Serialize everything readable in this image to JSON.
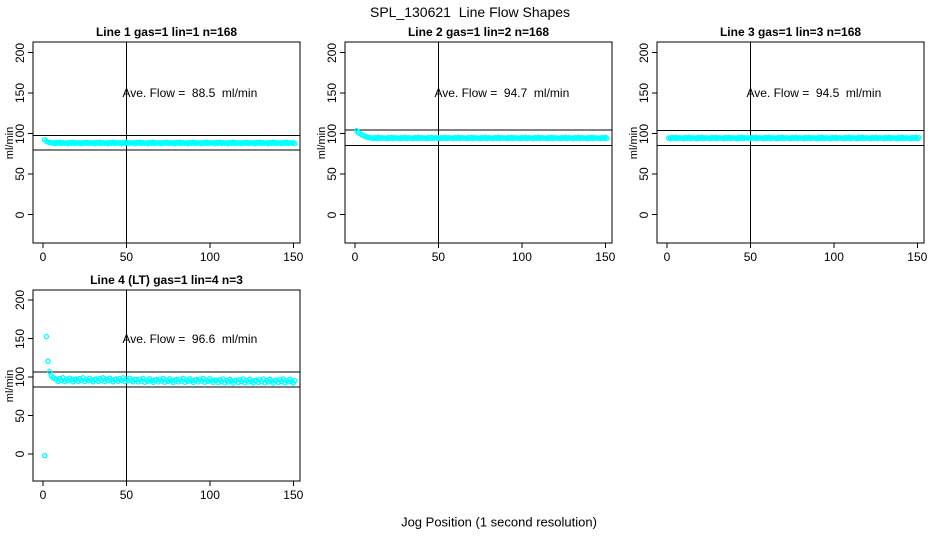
{
  "figure": {
    "title": "SPL_130621  Line Flow Shapes",
    "xlabel": "Jog Position (1 second resolution)"
  },
  "colors": {
    "points": "#00ffff",
    "axis": "#000000",
    "background": "#ffffff",
    "text": "#000000"
  },
  "chart_data": [
    {
      "type": "scatter",
      "title": "Line 1 gas=1 lin=1 n=168",
      "gas": 1,
      "lin": 1,
      "n": 168,
      "ave_flow": 88.5,
      "annotation": "Ave. Flow =  88.5  ml/min",
      "ylabel": "ml/min",
      "xticks": [
        0,
        50,
        100,
        150
      ],
      "yticks": [
        0,
        50,
        100,
        150,
        200
      ],
      "xlim": [
        -6,
        154
      ],
      "ylim": [
        -35,
        213
      ],
      "vline_x": 50,
      "hlines": [
        97.4,
        79.7
      ],
      "annotation_pos": [
        88,
        150
      ],
      "x_start": 1,
      "x_step": 1,
      "y": [
        92.5,
        90.6,
        89.6,
        89.1,
        88.8,
        88.5,
        87.7,
        89.0,
        88.1,
        89.3,
        87.9,
        88.8,
        88.3,
        88.5,
        87.7,
        89.0,
        88.1,
        89.3,
        87.9,
        88.8,
        88.3,
        88.5,
        87.7,
        89.0,
        88.1,
        89.3,
        87.9,
        88.8,
        88.3,
        88.5,
        87.7,
        89.0,
        88.1,
        89.3,
        87.9,
        88.8,
        88.3,
        88.5,
        87.7,
        89.0,
        88.1,
        89.3,
        87.9,
        88.8,
        88.3,
        88.5,
        87.7,
        89.0,
        88.1,
        89.3,
        87.9,
        88.8,
        88.3,
        88.5,
        87.7,
        89.0,
        88.1,
        89.3,
        87.9,
        88.8,
        88.3,
        88.5,
        87.7,
        89.0,
        88.1,
        89.3,
        87.9,
        88.8,
        88.3,
        88.5,
        87.7,
        89.0,
        88.1,
        89.3,
        87.9,
        88.8,
        88.3,
        88.5,
        87.7,
        89.0,
        88.1,
        89.3,
        87.9,
        88.8,
        88.3,
        88.5,
        87.7,
        89.0,
        88.1,
        89.3,
        87.9,
        88.8,
        88.3,
        88.5,
        87.7,
        89.0,
        88.1,
        89.3,
        87.9,
        88.8,
        88.3,
        88.5,
        87.7,
        89.0,
        88.1,
        89.3,
        87.9,
        88.8,
        88.3,
        88.5,
        87.7,
        89.0,
        88.1,
        89.3,
        87.9,
        88.8,
        88.3,
        88.5,
        87.7,
        89.0,
        88.1,
        89.3,
        87.9,
        88.8,
        88.3,
        88.5,
        87.7,
        89.0,
        88.1,
        89.3,
        87.9,
        88.8,
        88.3,
        88.5,
        87.7,
        89.0,
        88.1,
        89.3,
        87.9,
        88.8,
        88.3,
        88.5,
        87.7,
        89.0,
        88.1,
        89.3,
        87.9,
        88.8,
        88.3,
        88.5,
        87.7
      ]
    },
    {
      "type": "scatter",
      "title": "Line 2 gas=1 lin=2 n=168",
      "gas": 1,
      "lin": 2,
      "n": 168,
      "ave_flow": 94.7,
      "annotation": "Ave. Flow =  94.7  ml/min",
      "ylabel": "ml/min",
      "xticks": [
        0,
        50,
        100,
        150
      ],
      "yticks": [
        0,
        50,
        100,
        150,
        200
      ],
      "xlim": [
        -6,
        154
      ],
      "ylim": [
        -35,
        213
      ],
      "vline_x": 50,
      "hlines": [
        104.2,
        85.2
      ],
      "annotation_pos": [
        88,
        150
      ],
      "x_start": 1,
      "x_step": 1,
      "y": [
        103.5,
        101.6,
        100.0,
        98.6,
        97.5,
        96.6,
        95.9,
        95.4,
        95.0,
        94.6,
        93.9,
        95.1,
        94.2,
        95.3,
        94.0,
        94.9,
        94.4,
        94.6,
        93.9,
        95.1,
        94.2,
        95.3,
        94.0,
        94.9,
        94.4,
        94.6,
        93.9,
        95.1,
        94.2,
        95.3,
        94.0,
        94.9,
        94.4,
        94.6,
        93.9,
        95.1,
        94.2,
        95.3,
        94.0,
        94.9,
        94.4,
        94.6,
        93.9,
        95.1,
        94.2,
        95.3,
        94.0,
        94.9,
        94.4,
        94.6,
        93.9,
        95.1,
        94.2,
        95.3,
        94.0,
        94.9,
        94.4,
        94.6,
        93.9,
        95.1,
        94.2,
        95.3,
        94.0,
        94.9,
        94.4,
        94.6,
        93.9,
        95.1,
        94.2,
        95.3,
        94.0,
        94.9,
        94.4,
        94.6,
        93.9,
        95.1,
        94.2,
        95.3,
        94.0,
        94.9,
        94.4,
        94.6,
        93.9,
        95.1,
        94.2,
        95.3,
        94.0,
        94.9,
        94.4,
        94.6,
        93.9,
        95.1,
        94.2,
        95.3,
        94.0,
        94.9,
        94.4,
        94.6,
        93.9,
        95.1,
        94.2,
        95.3,
        94.0,
        94.9,
        94.4,
        94.6,
        93.9,
        95.1,
        94.2,
        95.3,
        94.0,
        94.9,
        94.4,
        94.6,
        93.9,
        95.1,
        94.2,
        95.3,
        94.0,
        94.9,
        94.4,
        94.6,
        93.9,
        95.1,
        94.2,
        95.3,
        94.0,
        94.9,
        94.4,
        94.6,
        93.9,
        95.1,
        94.2,
        95.3,
        94.0,
        94.9,
        94.4,
        94.6,
        93.9,
        95.1,
        94.2,
        95.3,
        94.0,
        94.9,
        94.4,
        94.6,
        93.9,
        95.1,
        94.2,
        95.3,
        94.0
      ]
    },
    {
      "type": "scatter",
      "title": "Line 3 gas=1 lin=3 n=168",
      "gas": 1,
      "lin": 3,
      "n": 168,
      "ave_flow": 94.5,
      "annotation": "Ave. Flow =  94.5  ml/min",
      "ylabel": "ml/min",
      "xticks": [
        0,
        50,
        100,
        150
      ],
      "yticks": [
        0,
        50,
        100,
        150,
        200
      ],
      "xlim": [
        -6,
        154
      ],
      "ylim": [
        -35,
        213
      ],
      "vline_x": 50,
      "hlines": [
        104.0,
        85.1
      ],
      "annotation_pos": [
        88,
        150
      ],
      "x_start": 1,
      "x_step": 1,
      "y": [
        94.6,
        93.8,
        95.2,
        94.2,
        95.3,
        94.0,
        94.9,
        94.5,
        94.6,
        93.8,
        95.2,
        94.2,
        95.3,
        94.0,
        94.9,
        94.5,
        94.6,
        93.8,
        95.2,
        94.2,
        95.3,
        94.0,
        94.9,
        94.5,
        94.6,
        93.8,
        95.2,
        94.2,
        95.3,
        94.0,
        94.9,
        94.5,
        94.6,
        93.8,
        95.2,
        94.2,
        95.3,
        94.0,
        94.9,
        94.5,
        94.6,
        93.8,
        95.2,
        94.2,
        95.3,
        94.0,
        94.9,
        94.5,
        94.6,
        93.8,
        95.2,
        94.2,
        95.3,
        94.0,
        94.9,
        94.5,
        94.6,
        93.8,
        95.2,
        94.2,
        95.3,
        94.0,
        94.9,
        94.5,
        94.6,
        93.8,
        95.2,
        94.2,
        95.3,
        94.0,
        94.9,
        94.5,
        94.6,
        93.8,
        95.2,
        94.2,
        95.3,
        94.0,
        94.9,
        94.5,
        94.6,
        93.8,
        95.2,
        94.2,
        95.3,
        94.0,
        94.9,
        94.5,
        94.6,
        93.8,
        95.2,
        94.2,
        95.3,
        94.0,
        94.9,
        94.5,
        94.6,
        93.8,
        95.2,
        94.2,
        95.3,
        94.0,
        94.9,
        94.5,
        94.6,
        93.8,
        95.2,
        94.2,
        95.3,
        94.0,
        94.9,
        94.5,
        94.6,
        93.8,
        95.2,
        94.2,
        95.3,
        94.0,
        94.9,
        94.5,
        94.6,
        93.8,
        95.2,
        94.2,
        95.3,
        94.0,
        94.9,
        94.5,
        94.6,
        93.8,
        95.2,
        94.2,
        95.3,
        94.0,
        94.9,
        94.5,
        94.6,
        93.8,
        95.2,
        94.2,
        95.3,
        94.0,
        94.9,
        94.5,
        94.6,
        93.8,
        95.2,
        94.2,
        95.3,
        94.0,
        94.9
      ]
    },
    {
      "type": "scatter",
      "title": "Line 4 (LT) gas=1 lin=4 n=3",
      "gas": 1,
      "lin": 4,
      "n": 3,
      "ave_flow": 96.6,
      "annotation": "Ave. Flow =  96.6  ml/min",
      "ylabel": "ml/min",
      "xticks": [
        0,
        50,
        100,
        150
      ],
      "yticks": [
        0,
        50,
        100,
        150,
        200
      ],
      "xlim": [
        -6,
        154
      ],
      "ylim": [
        -35,
        213
      ],
      "vline_x": 50,
      "hlines": [
        106.3,
        86.9
      ],
      "annotation_pos": [
        88,
        150
      ],
      "x_start": 1,
      "x_step": 1,
      "y": [
        -2.0,
        152.5,
        120.5,
        107.0,
        101.5,
        99.0,
        98.0,
        97.5,
        94.5,
        98.0,
        95.5,
        99.0,
        94.0,
        97.0,
        95.2,
        98.5,
        96.0,
        93.8,
        96.8,
        97.5,
        94.5,
        98.0,
        95.5,
        99.0,
        94.0,
        97.0,
        95.2,
        98.5,
        96.0,
        93.8,
        96.8,
        97.5,
        94.5,
        98.0,
        95.5,
        99.0,
        94.0,
        97.0,
        95.2,
        98.5,
        96.0,
        93.8,
        96.8,
        97.5,
        94.5,
        98.0,
        95.5,
        99.0,
        94.0,
        97.0,
        95.2,
        98.5,
        96.0,
        93.8,
        96.8,
        96.7,
        93.7,
        97.2,
        94.7,
        98.2,
        93.2,
        96.2,
        94.4,
        97.7,
        95.2,
        93.0,
        96.0,
        96.7,
        93.7,
        97.2,
        94.7,
        98.2,
        93.2,
        96.2,
        94.4,
        97.7,
        95.2,
        93.0,
        96.0,
        96.7,
        93.7,
        97.2,
        94.7,
        98.2,
        93.2,
        96.2,
        94.4,
        97.7,
        95.2,
        93.0,
        96.0,
        96.7,
        93.7,
        97.2,
        94.7,
        98.2,
        93.2,
        96.2,
        94.4,
        97.7,
        95.2,
        93.0,
        96.0,
        96.0,
        93.0,
        96.5,
        94.0,
        97.5,
        92.5,
        95.5,
        93.7,
        97.0,
        94.5,
        92.3,
        95.3,
        96.0,
        93.0,
        96.5,
        94.0,
        97.5,
        92.5,
        95.5,
        93.7,
        97.0,
        94.5,
        92.3,
        95.3,
        96.0,
        93.0,
        96.5,
        94.0,
        97.5,
        92.5,
        95.5,
        93.7,
        97.0,
        94.5,
        92.3,
        95.3,
        96.0,
        93.0,
        96.5,
        94.0,
        97.5,
        92.5,
        95.5,
        93.7,
        97.0,
        94.5,
        92.3,
        95.3
      ]
    }
  ]
}
